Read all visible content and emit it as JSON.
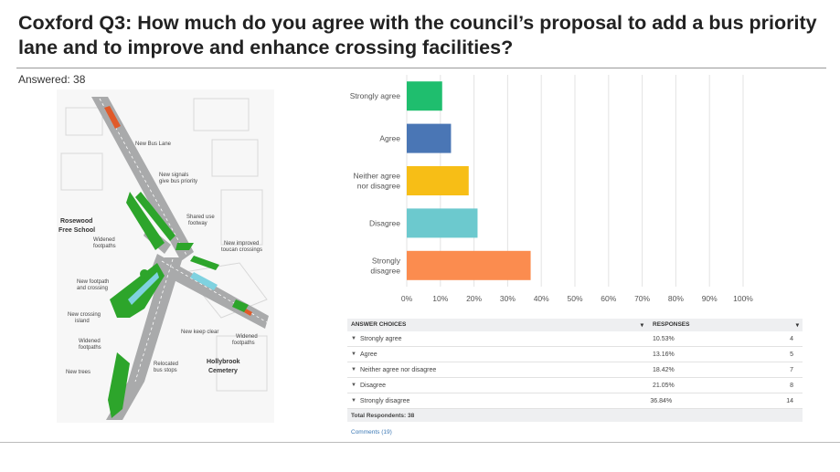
{
  "header": {
    "title": "Coxford Q3: How much do you agree with the council’s proposal to add a bus priority lane and to improve and enhance crossing facilities?",
    "answered_label": "Answered: 38"
  },
  "map": {
    "labels": {
      "new_bus_lane": "New Bus Lane",
      "new_signals_1": "New signals",
      "new_signals_2": "give bus priority",
      "shared_use_1": "Shared use",
      "shared_use_2": "footway",
      "rosewood_1": "Rosewood",
      "rosewood_2": "Free School",
      "widened_1": "Widened",
      "widened_2": "footpaths",
      "toucan_1": "New improved",
      "toucan_2": "toucan crossings",
      "new_footpath_1": "New footpath",
      "new_footpath_2": "and crossing",
      "crossing_island_1": "New crossing",
      "crossing_island_2": "island",
      "keep_clear": "New keep clear",
      "widened_b_1": "Widened",
      "widened_b_2": "footpaths",
      "widened_c_1": "Widened",
      "widened_c_2": "footpaths",
      "hollybrook_1": "Hollybrook",
      "hollybrook_2": "Cemetery",
      "new_trees": "New trees",
      "relocated_1": "Relocated",
      "relocated_2": "bus stops"
    }
  },
  "chart_data": {
    "type": "bar",
    "orientation": "horizontal",
    "categories": [
      "Strongly agree",
      "Agree",
      "Neither agree nor disagree",
      "Disagree",
      "Strongly disagree"
    ],
    "category_lines": [
      [
        "Strongly agree"
      ],
      [
        "Agree"
      ],
      [
        "Neither agree",
        "nor disagree"
      ],
      [
        "Disagree"
      ],
      [
        "Strongly",
        "disagree"
      ]
    ],
    "values": [
      10.53,
      13.16,
      18.42,
      21.05,
      36.84
    ],
    "colors": [
      "#1fbe6e",
      "#4a76b5",
      "#f7be16",
      "#6cc9ce",
      "#fb8c4f"
    ],
    "xlim": [
      0,
      100
    ],
    "xticks": [
      "0%",
      "10%",
      "20%",
      "30%",
      "40%",
      "50%",
      "60%",
      "70%",
      "80%",
      "90%",
      "100%"
    ],
    "grid": true
  },
  "table": {
    "headers": {
      "choices": "ANSWER CHOICES",
      "responses": "RESPONSES"
    },
    "rows": [
      {
        "label": "Strongly agree",
        "pct": "10.53%",
        "count": "4"
      },
      {
        "label": "Agree",
        "pct": "13.16%",
        "count": "5"
      },
      {
        "label": "Neither agree nor disagree",
        "pct": "18.42%",
        "count": "7"
      },
      {
        "label": "Disagree",
        "pct": "21.05%",
        "count": "8"
      },
      {
        "label": "Strongly disagree",
        "pct": "36.84%",
        "count": "14"
      }
    ],
    "total": "Total Respondents: 38",
    "comments": "Comments (19)"
  }
}
